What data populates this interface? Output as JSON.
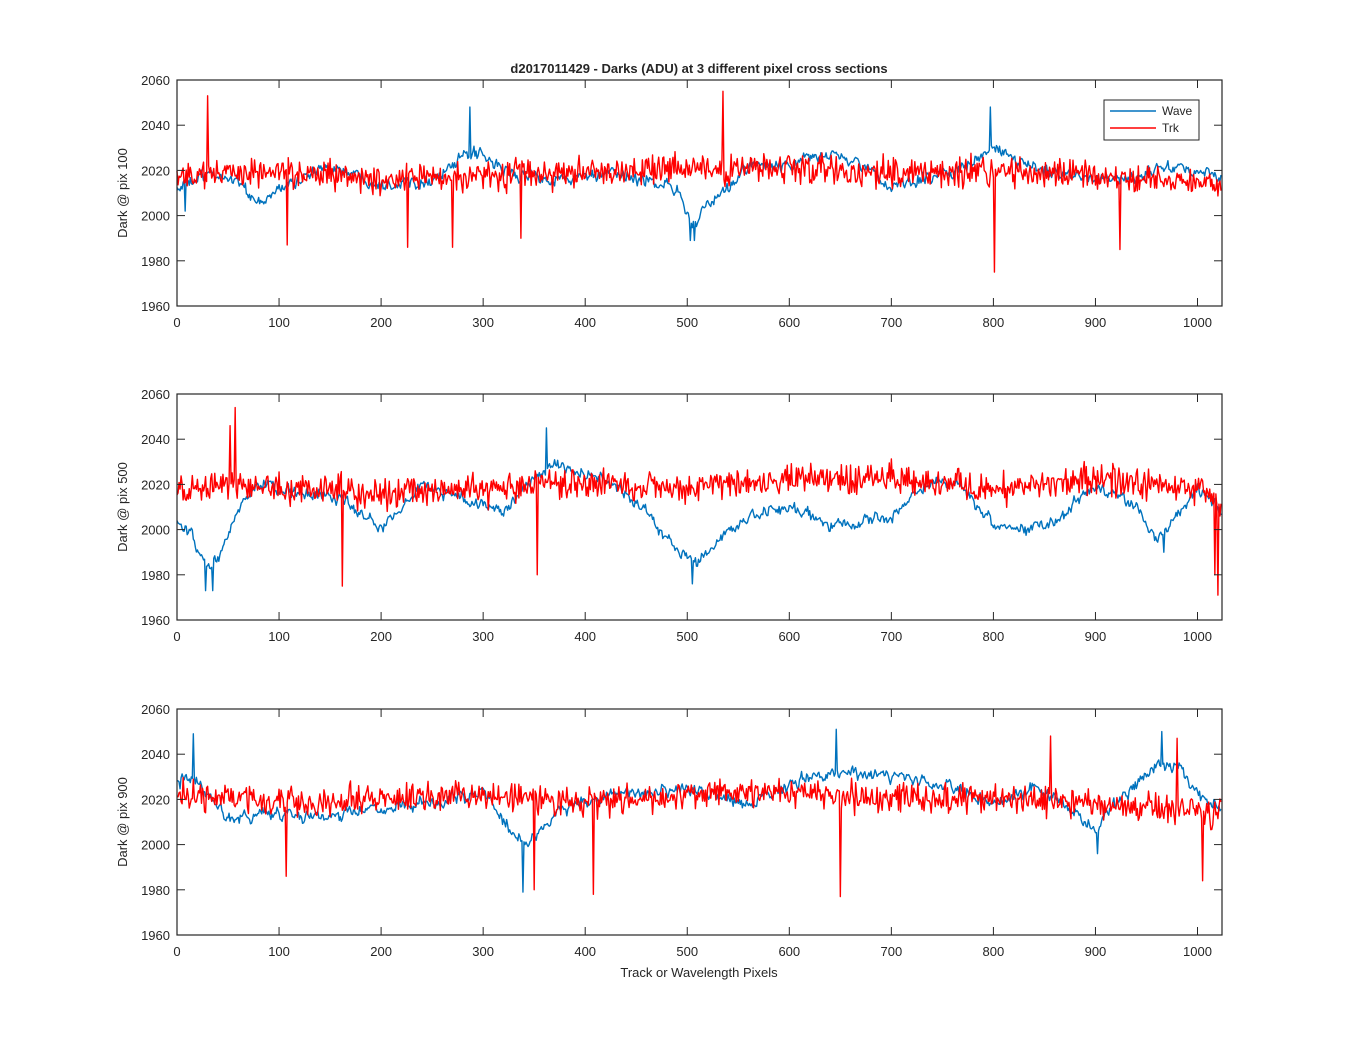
{
  "figure": {
    "title": "d2017011429 - Darks (ADU) at 3 different pixel cross sections",
    "xlabel": "Track or Wavelength Pixels"
  },
  "colors": {
    "Wave": "#0072BD",
    "Trk": "#FF0000",
    "axis": "#262626"
  },
  "legend": {
    "placement": "top-right",
    "entries": [
      "Wave",
      "Trk"
    ]
  },
  "chart_data": [
    {
      "type": "line",
      "ylabel": "Dark @ pix 100",
      "xlim": [
        0,
        1024
      ],
      "ylim": [
        1960,
        2060
      ],
      "xticks": [
        0,
        100,
        200,
        300,
        400,
        500,
        600,
        700,
        800,
        900,
        1000
      ],
      "yticks": [
        1960,
        1980,
        2000,
        2020,
        2040,
        2060
      ],
      "legend": true,
      "series": [
        {
          "name": "Wave",
          "n": 1024,
          "x_step": 1,
          "anchors_x": [
            0,
            30,
            60,
            80,
            100,
            150,
            200,
            250,
            290,
            330,
            380,
            420,
            460,
            490,
            505,
            530,
            560,
            600,
            640,
            680,
            700,
            730,
            760,
            790,
            800,
            830,
            880,
            930,
            980,
            1024
          ],
          "anchors_y": [
            2012,
            2018,
            2016,
            2004,
            2012,
            2022,
            2014,
            2016,
            2028,
            2018,
            2016,
            2018,
            2016,
            2012,
            1996,
            2008,
            2022,
            2022,
            2028,
            2020,
            2012,
            2016,
            2020,
            2026,
            2030,
            2022,
            2018,
            2016,
            2022,
            2016
          ],
          "noise_amplitude": 5,
          "extremes": [
            [
              287,
              2048
            ],
            [
              503,
              1989
            ],
            [
              507,
              1989
            ],
            [
              797,
              2048
            ],
            [
              8,
              2002
            ]
          ]
        },
        {
          "name": "Trk",
          "n": 1024,
          "x_step": 1,
          "anchors_x": [
            0,
            100,
            200,
            300,
            400,
            500,
            600,
            700,
            800,
            900,
            1024
          ],
          "anchors_y": [
            2018,
            2019,
            2016,
            2018,
            2019,
            2020,
            2021,
            2019,
            2020,
            2017,
            2014
          ],
          "noise_amplitude": 7,
          "extremes": [
            [
              30,
              2053
            ],
            [
              535,
              2055
            ],
            [
              801,
              1975
            ],
            [
              226,
              1986
            ],
            [
              270,
              1986
            ],
            [
              108,
              1987
            ],
            [
              337,
              1990
            ],
            [
              924,
              1985
            ]
          ]
        }
      ]
    },
    {
      "type": "line",
      "ylabel": "Dark @ pix 500",
      "xlim": [
        0,
        1024
      ],
      "ylim": [
        1960,
        2060
      ],
      "xticks": [
        0,
        100,
        200,
        300,
        400,
        500,
        600,
        700,
        800,
        900,
        1000
      ],
      "yticks": [
        1960,
        1980,
        2000,
        2020,
        2040,
        2060
      ],
      "legend": false,
      "series": [
        {
          "name": "Wave",
          "n": 1024,
          "x_step": 1,
          "anchors_x": [
            0,
            15,
            30,
            45,
            60,
            80,
            120,
            160,
            200,
            240,
            280,
            320,
            350,
            370,
            400,
            430,
            460,
            490,
            510,
            540,
            570,
            600,
            630,
            660,
            700,
            740,
            770,
            800,
            830,
            860,
            900,
            940,
            960,
            1000,
            1024
          ],
          "anchors_y": [
            2003,
            1996,
            1982,
            1990,
            2010,
            2020,
            2016,
            2014,
            2000,
            2020,
            2014,
            2008,
            2022,
            2030,
            2024,
            2020,
            2008,
            1990,
            1985,
            2000,
            2006,
            2010,
            2004,
            2002,
            2006,
            2022,
            2020,
            2002,
            2000,
            2004,
            2020,
            2010,
            1996,
            2018,
            2008
          ],
          "noise_amplitude": 5,
          "extremes": [
            [
              28,
              1973
            ],
            [
              35,
              1973
            ],
            [
              362,
              2045
            ],
            [
              505,
              1976
            ],
            [
              967,
              1990
            ]
          ]
        },
        {
          "name": "Trk",
          "n": 1024,
          "x_step": 1,
          "anchors_x": [
            0,
            60,
            200,
            400,
            450,
            600,
            700,
            800,
            900,
            1000,
            1024
          ],
          "anchors_y": [
            2016,
            2020,
            2016,
            2020,
            2018,
            2022,
            2022,
            2018,
            2022,
            2018,
            2012
          ],
          "noise_amplitude": 7,
          "extremes": [
            [
              57,
              2054
            ],
            [
              52,
              2046
            ],
            [
              162,
              1975
            ],
            [
              1020,
              1971
            ],
            [
              1017,
              1980
            ],
            [
              353,
              1980
            ]
          ]
        }
      ]
    },
    {
      "type": "line",
      "ylabel": "Dark @ pix 900",
      "xlim": [
        0,
        1024
      ],
      "ylim": [
        1960,
        2060
      ],
      "xticks": [
        0,
        100,
        200,
        300,
        400,
        500,
        600,
        700,
        800,
        900,
        1000
      ],
      "yticks": [
        1960,
        1980,
        2000,
        2020,
        2040,
        2060
      ],
      "legend": false,
      "series": [
        {
          "name": "Wave",
          "n": 1024,
          "x_step": 1,
          "anchors_x": [
            0,
            20,
            50,
            100,
            150,
            200,
            260,
            300,
            330,
            345,
            370,
            420,
            500,
            560,
            620,
            650,
            700,
            740,
            800,
            840,
            880,
            900,
            920,
            960,
            980,
            1000,
            1024
          ],
          "anchors_y": [
            2028,
            2028,
            2012,
            2014,
            2012,
            2016,
            2018,
            2024,
            2004,
            2000,
            2014,
            2022,
            2024,
            2018,
            2030,
            2032,
            2030,
            2028,
            2018,
            2026,
            2014,
            2006,
            2018,
            2034,
            2036,
            2022,
            2016
          ],
          "noise_amplitude": 5,
          "extremes": [
            [
              16,
              2049
            ],
            [
              339,
              1979
            ],
            [
              646,
              2051
            ],
            [
              902,
              1996
            ],
            [
              965,
              2050
            ]
          ]
        },
        {
          "name": "Trk",
          "n": 1024,
          "x_step": 1,
          "anchors_x": [
            0,
            100,
            200,
            300,
            400,
            500,
            600,
            700,
            800,
            900,
            1024
          ],
          "anchors_y": [
            2022,
            2018,
            2020,
            2022,
            2018,
            2022,
            2023,
            2020,
            2021,
            2018,
            2014
          ],
          "noise_amplitude": 7,
          "extremes": [
            [
              650,
              1977
            ],
            [
              408,
              1978
            ],
            [
              350,
              1980
            ],
            [
              107,
              1986
            ],
            [
              1005,
              1984
            ],
            [
              856,
              2048
            ],
            [
              980,
              2047
            ]
          ]
        }
      ]
    }
  ]
}
